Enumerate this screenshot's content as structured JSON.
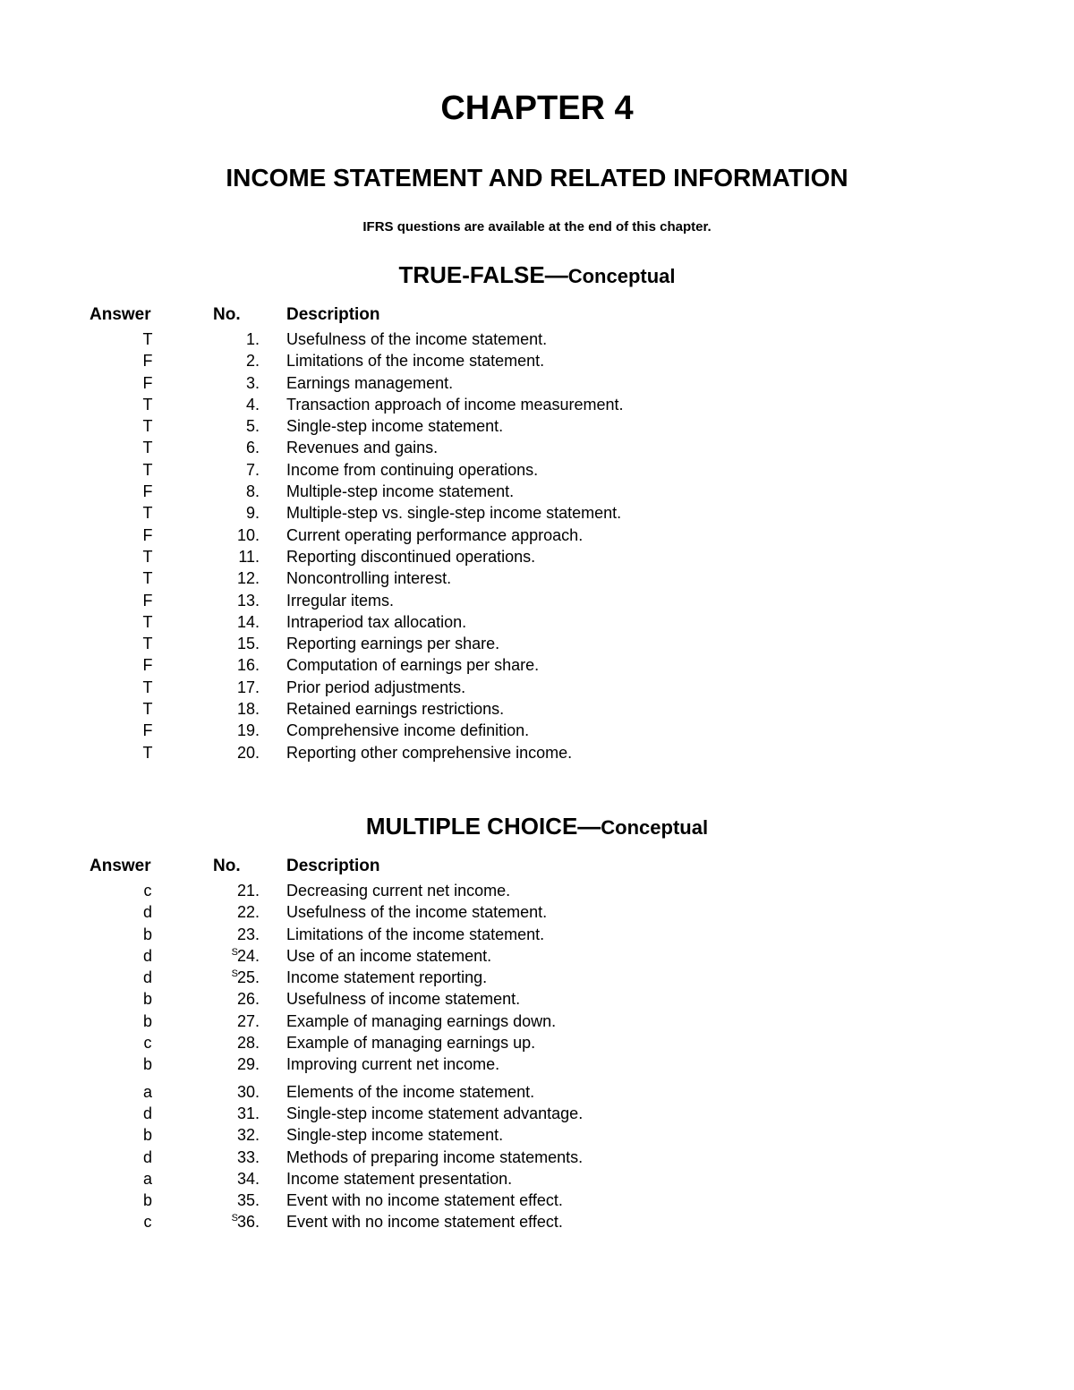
{
  "chapter_title": "CHAPTER 4",
  "subtitle": "INCOME STATEMENT AND RELATED INFORMATION",
  "note": "IFRS questions are available at the end of this chapter.",
  "tf_section": {
    "title_main": "TRUE-FALSE—",
    "title_suffix": "Conceptual",
    "headers": {
      "answer": "Answer",
      "no": "No.",
      "description": "Description"
    },
    "rows": [
      {
        "answer": "T",
        "no": "1.",
        "sup": "",
        "description": "Usefulness of the income statement."
      },
      {
        "answer": "F",
        "no": "2.",
        "sup": "",
        "description": "Limitations of the income statement."
      },
      {
        "answer": "F",
        "no": "3.",
        "sup": "",
        "description": "Earnings management."
      },
      {
        "answer": "T",
        "no": "4.",
        "sup": "",
        "description": "Transaction approach of income measurement."
      },
      {
        "answer": "T",
        "no": "5.",
        "sup": "",
        "description": "Single-step income statement."
      },
      {
        "answer": "T",
        "no": "6.",
        "sup": "",
        "description": "Revenues and gains."
      },
      {
        "answer": "T",
        "no": "7.",
        "sup": "",
        "description": "Income from continuing operations."
      },
      {
        "answer": "F",
        "no": "8.",
        "sup": "",
        "description": "Multiple-step income statement."
      },
      {
        "answer": "T",
        "no": "9.",
        "sup": "",
        "description": "Multiple-step vs. single-step income statement."
      },
      {
        "answer": "F",
        "no": "10.",
        "sup": "",
        "description": "Current operating performance approach."
      },
      {
        "answer": "T",
        "no": "11.",
        "sup": "",
        "description": "Reporting discontinued operations."
      },
      {
        "answer": "T",
        "no": "12.",
        "sup": "",
        "description": "Noncontrolling interest."
      },
      {
        "answer": "F",
        "no": "13.",
        "sup": "",
        "description": "Irregular items."
      },
      {
        "answer": "T",
        "no": "14.",
        "sup": "",
        "description": "Intraperiod tax allocation."
      },
      {
        "answer": "T",
        "no": "15.",
        "sup": "",
        "description": "Reporting earnings per share."
      },
      {
        "answer": "F",
        "no": "16.",
        "sup": "",
        "description": "Computation of earnings per share."
      },
      {
        "answer": "T",
        "no": "17.",
        "sup": "",
        "description": "Prior period adjustments."
      },
      {
        "answer": "T",
        "no": "18.",
        "sup": "",
        "description": "Retained earnings restrictions."
      },
      {
        "answer": "F",
        "no": "19.",
        "sup": "",
        "description": "Comprehensive income definition."
      },
      {
        "answer": "T",
        "no": "20.",
        "sup": "",
        "description": "Reporting other comprehensive income."
      }
    ]
  },
  "mc_section": {
    "title_main": "MULTIPLE CHOICE—",
    "title_suffix": "Conceptual",
    "headers": {
      "answer": "Answer",
      "no": "No.",
      "description": "Description"
    },
    "rows": [
      {
        "answer": "c",
        "no": "21.",
        "sup": "",
        "description": "Decreasing current net income."
      },
      {
        "answer": "d",
        "no": "22.",
        "sup": "",
        "description": "Usefulness of the income statement."
      },
      {
        "answer": "b",
        "no": "23.",
        "sup": "",
        "description": "Limitations of the income statement."
      },
      {
        "answer": "d",
        "no": "24.",
        "sup": "S",
        "description": "Use of an income statement."
      },
      {
        "answer": "d",
        "no": "25.",
        "sup": "S",
        "description": "Income statement reporting."
      },
      {
        "answer": "b",
        "no": "26.",
        "sup": "",
        "description": "Usefulness of income statement."
      },
      {
        "answer": "b",
        "no": "27.",
        "sup": "",
        "description": "Example of managing earnings down."
      },
      {
        "answer": "c",
        "no": "28.",
        "sup": "",
        "description": "Example of managing earnings up."
      },
      {
        "answer": "b",
        "no": "29.",
        "sup": "",
        "description": "Improving current net income."
      },
      {
        "answer": "a",
        "no": "30.",
        "sup": "",
        "description": "Elements of the income statement.",
        "gap_before": true
      },
      {
        "answer": "d",
        "no": "31.",
        "sup": "",
        "description": "Single-step income statement advantage."
      },
      {
        "answer": "b",
        "no": "32.",
        "sup": "",
        "description": "Single-step income statement."
      },
      {
        "answer": "d",
        "no": "33.",
        "sup": "",
        "description": "Methods of preparing income statements."
      },
      {
        "answer": "a",
        "no": "34.",
        "sup": "",
        "description": "Income statement presentation."
      },
      {
        "answer": "b",
        "no": "35.",
        "sup": "",
        "description": "Event with no income statement effect."
      },
      {
        "answer": "c",
        "no": "36.",
        "sup": "S",
        "description": "Event with no income statement effect."
      }
    ]
  }
}
